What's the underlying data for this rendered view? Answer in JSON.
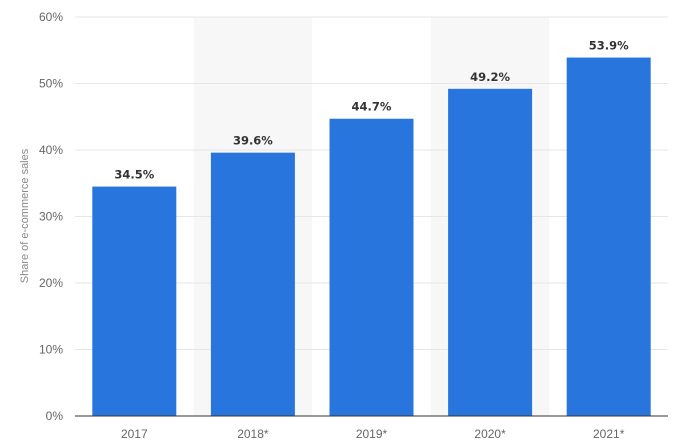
{
  "chart_data": {
    "type": "bar",
    "title": "",
    "xlabel": "",
    "ylabel": "Share of e-commerce sales",
    "categories": [
      "2017",
      "2018*",
      "2019*",
      "2020*",
      "2021*"
    ],
    "values": [
      34.5,
      39.6,
      44.7,
      49.2,
      53.9
    ],
    "data_labels": [
      "34.5%",
      "39.6%",
      "44.7%",
      "49.2%",
      "53.9%"
    ],
    "ylim": [
      0,
      60
    ],
    "yticks": [
      0,
      10,
      20,
      30,
      40,
      50,
      60
    ],
    "ytick_labels": [
      "0%",
      "10%",
      "20%",
      "30%",
      "40%",
      "50%",
      "60%"
    ],
    "grid": true,
    "legend": "none",
    "shaded_columns": [
      "2018*",
      "2020*"
    ],
    "colors": {
      "bar": "#2876dd",
      "shade": "#f7f7f7",
      "grid": "#e6e6e6",
      "axis": "#333333"
    }
  }
}
